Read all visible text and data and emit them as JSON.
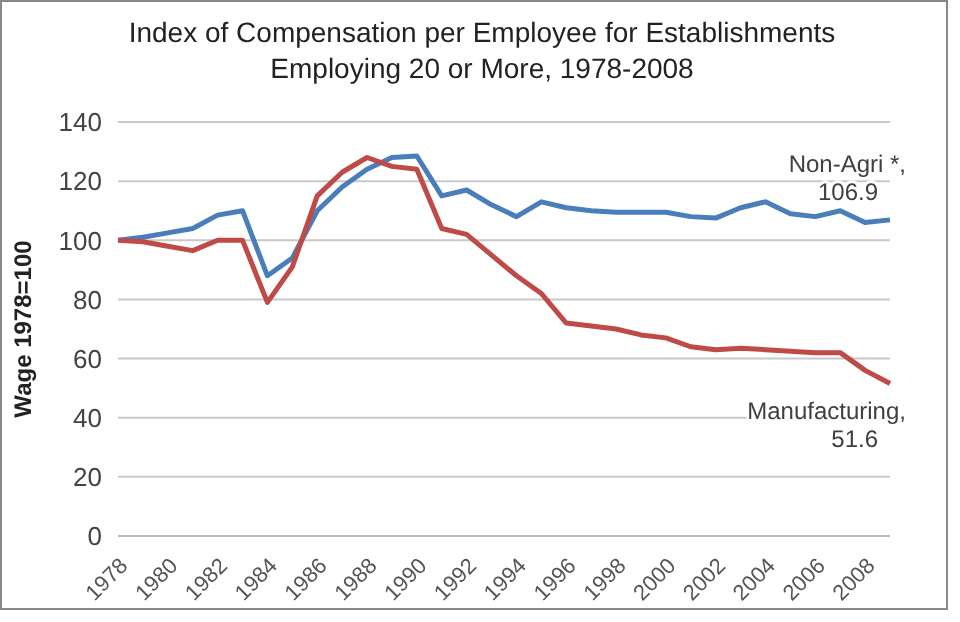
{
  "chart_data": {
    "type": "line",
    "title": "Index of  Compensation per Employee for Establishments Employing 20 or More, 1978-2008",
    "ylabel": "Wage 1978=100",
    "categories": [
      "1978",
      null,
      "1980",
      null,
      "1982",
      null,
      "1984",
      null,
      "1986",
      null,
      "1988",
      null,
      "1990",
      null,
      "1992",
      null,
      "1994",
      null,
      "1996",
      null,
      "1998",
      null,
      "2000",
      null,
      "2002",
      null,
      "2004",
      null,
      "2006",
      null,
      "2008",
      null
    ],
    "series": [
      {
        "name": "Non-Agri *,",
        "color": "#4a7ebb",
        "values": [
          100,
          101,
          102.5,
          104,
          108.5,
          110,
          88,
          94,
          110,
          118,
          124,
          128,
          128.5,
          115,
          117,
          112,
          108,
          113,
          111,
          110,
          109.5,
          109.5,
          109.5,
          108,
          107.5,
          111,
          113,
          109,
          108,
          110,
          106,
          106.9
        ],
        "value_labels": [
          null,
          null,
          null,
          null,
          null,
          null,
          null,
          null,
          null,
          null,
          null,
          null,
          null,
          null,
          null,
          null,
          null,
          null,
          null,
          null,
          null,
          null,
          null,
          null,
          null,
          null,
          null,
          null,
          null,
          null,
          null,
          "106.9"
        ]
      },
      {
        "name": "Manufacturing,",
        "color": "#be4b48",
        "values": [
          100,
          99.5,
          98,
          96.5,
          100,
          100,
          79,
          91,
          115,
          123,
          128,
          125,
          124,
          104,
          102,
          95,
          88,
          82,
          72,
          71,
          70,
          68,
          67,
          64,
          63,
          63.5,
          63,
          62.5,
          62,
          62,
          56,
          51.6
        ],
        "value_labels": [
          null,
          null,
          null,
          null,
          null,
          null,
          null,
          null,
          null,
          null,
          null,
          null,
          null,
          null,
          null,
          null,
          null,
          null,
          null,
          null,
          null,
          null,
          null,
          null,
          null,
          null,
          null,
          null,
          null,
          null,
          null,
          "51.6"
        ]
      }
    ],
    "ylim": [
      0,
      140
    ],
    "yticks": [
      0,
      20,
      40,
      60,
      80,
      100,
      120,
      140
    ],
    "grid": "y",
    "legend": false,
    "marker": "none",
    "line_style": "solid"
  }
}
